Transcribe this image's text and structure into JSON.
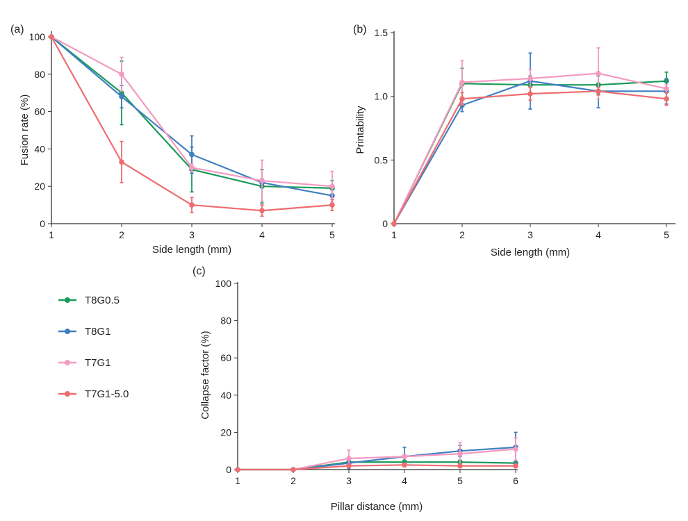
{
  "series_meta": [
    {
      "name": "T8G0.5",
      "color": "#1a9a5a"
    },
    {
      "name": "T8G1",
      "color": "#3f7fc0"
    },
    {
      "name": "T7G1",
      "color": "#f49ac1"
    },
    {
      "name": "T7G1-5.0",
      "color": "#ee6b6e"
    }
  ],
  "chart_data": [
    {
      "type": "line",
      "panel_label": "(a)",
      "xlabel": "Side length (mm)",
      "ylabel": "Fusion rate (%)",
      "x": [
        1,
        2,
        3,
        4,
        5
      ],
      "xticks": [
        "1",
        "2",
        "3",
        "4",
        "5"
      ],
      "yticks": [
        "0",
        "20",
        "40",
        "60",
        "80",
        "100"
      ],
      "ylim": [
        0,
        100
      ],
      "series": [
        {
          "name": "T8G0.5",
          "values": [
            100,
            70,
            29,
            20,
            19
          ],
          "error": [
            0,
            17,
            12,
            9,
            4
          ]
        },
        {
          "name": "T8G1",
          "values": [
            100,
            68,
            37,
            22,
            15
          ],
          "error": [
            0,
            6,
            10,
            2,
            4
          ]
        },
        {
          "name": "T7G1",
          "values": [
            100,
            80,
            30,
            23,
            20
          ],
          "error": [
            0,
            9,
            2,
            11,
            8
          ]
        },
        {
          "name": "T7G1-5.0",
          "values": [
            100,
            33,
            10,
            7,
            10
          ],
          "error": [
            0,
            11,
            4,
            3,
            3
          ]
        }
      ]
    },
    {
      "type": "line",
      "panel_label": "(b)",
      "xlabel": "Side length (mm)",
      "ylabel": "Printability",
      "x": [
        1,
        2,
        3,
        4,
        5
      ],
      "xticks": [
        "1",
        "2",
        "3",
        "4",
        "5"
      ],
      "yticks": [
        "0",
        "0.5",
        "1.0",
        "1.5"
      ],
      "ylim": [
        0,
        1.5
      ],
      "series": [
        {
          "name": "T8G0.5",
          "values": [
            0,
            1.1,
            1.09,
            1.09,
            1.12
          ],
          "error": [
            0,
            0.12,
            0.07,
            0.07,
            0.07
          ]
        },
        {
          "name": "T8G1",
          "values": [
            0,
            0.93,
            1.12,
            1.04,
            1.04
          ],
          "error": [
            0,
            0.05,
            0.22,
            0.13,
            0.1
          ]
        },
        {
          "name": "T7G1",
          "values": [
            0,
            1.11,
            1.14,
            1.18,
            1.06
          ],
          "error": [
            0,
            0.17,
            0.07,
            0.2,
            0.03
          ]
        },
        {
          "name": "T7G1-5.0",
          "values": [
            0,
            0.98,
            1.02,
            1.04,
            0.98
          ],
          "error": [
            0,
            0.05,
            0.05,
            0.03,
            0.05
          ]
        }
      ]
    },
    {
      "type": "line",
      "panel_label": "(c)",
      "xlabel": "Pillar distance (mm)",
      "ylabel": "Collapse factor (%)",
      "x": [
        1,
        2,
        3,
        4,
        5,
        6
      ],
      "xticks": [
        "1",
        "2",
        "3",
        "4",
        "5",
        "6"
      ],
      "yticks": [
        "0",
        "20",
        "40",
        "60",
        "80",
        "100"
      ],
      "ylim": [
        0,
        100
      ],
      "series": [
        {
          "name": "T8G0.5",
          "values": [
            0,
            0,
            4,
            4,
            4,
            3.5
          ],
          "error": [
            0,
            0,
            1,
            1,
            1,
            1
          ]
        },
        {
          "name": "T8G1",
          "values": [
            0,
            0,
            3.5,
            7,
            10,
            12
          ],
          "error": [
            0,
            0,
            3,
            5,
            3,
            8
          ]
        },
        {
          "name": "T7G1",
          "values": [
            0,
            0,
            6,
            7,
            8.5,
            11
          ],
          "error": [
            0,
            0,
            4.5,
            1,
            6,
            6
          ]
        },
        {
          "name": "T7G1-5.0",
          "values": [
            0,
            0,
            2,
            2.5,
            2,
            2
          ],
          "error": [
            0,
            0,
            1,
            1,
            1,
            1
          ]
        }
      ]
    }
  ]
}
